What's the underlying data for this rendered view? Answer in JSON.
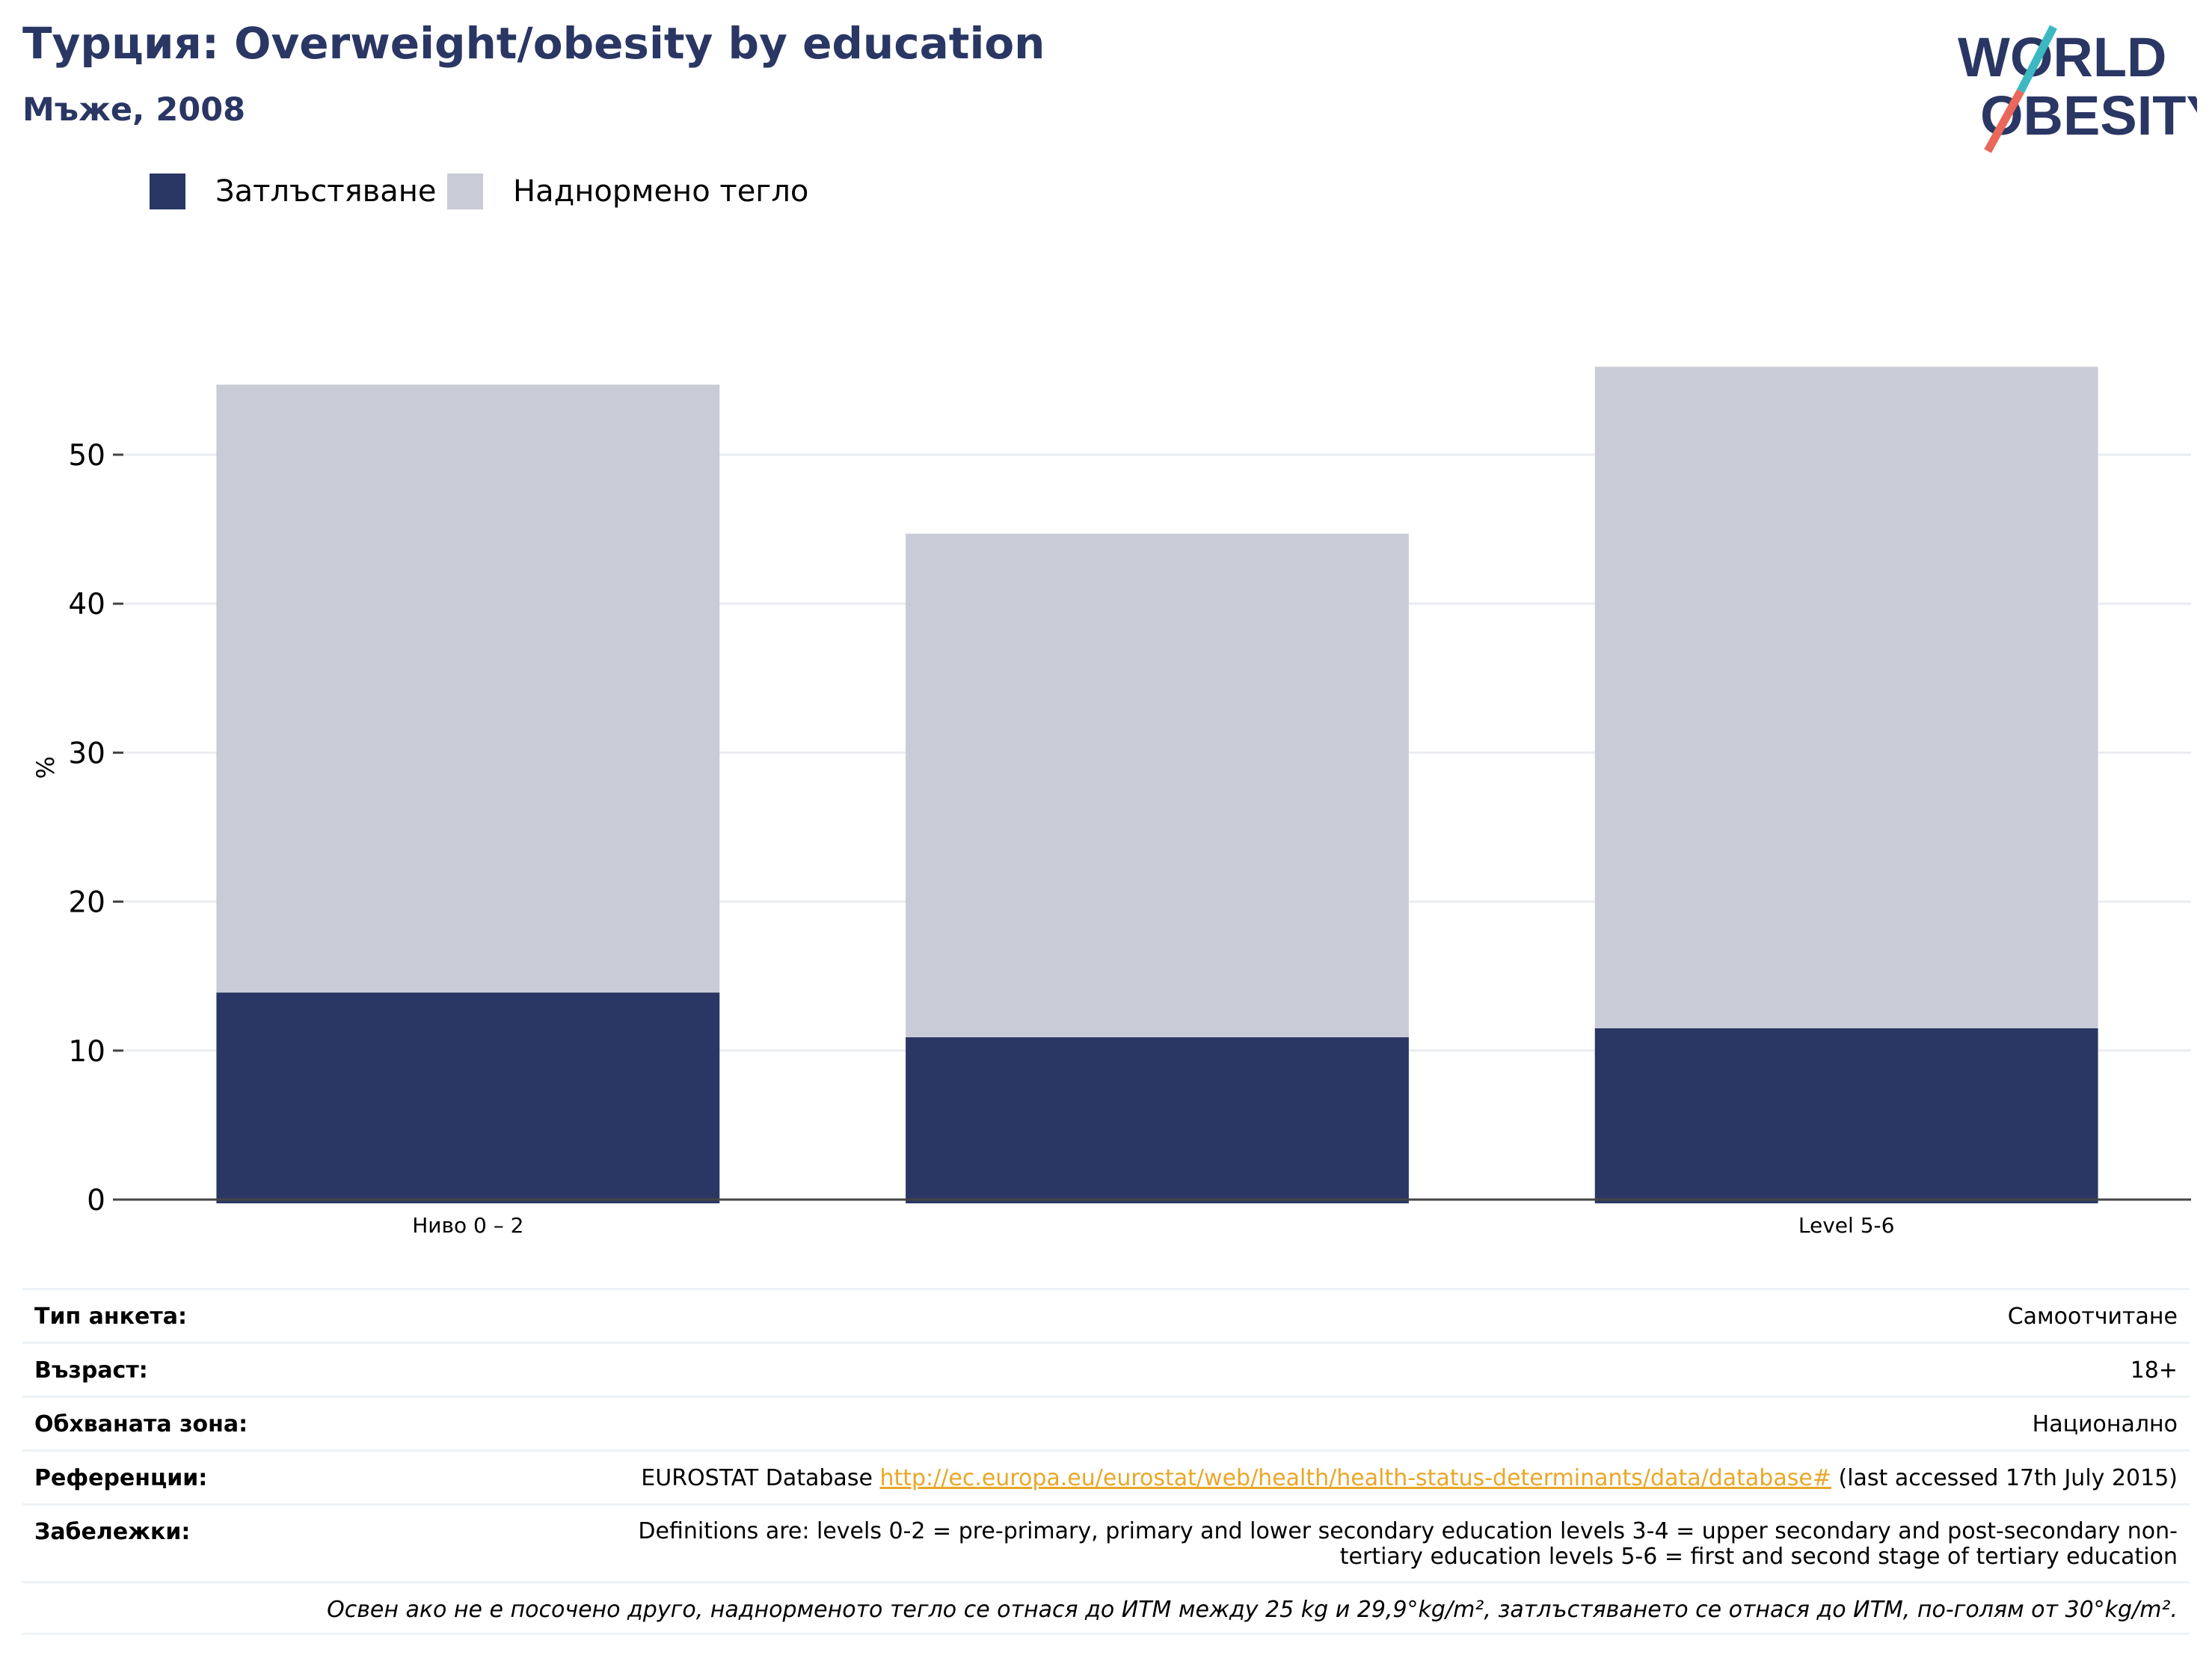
{
  "header": {
    "title": "Турция: Overweight/obesity by education",
    "subtitle": "Мъже, 2008"
  },
  "logo": {
    "line1": "WORLD",
    "line2": "OBESITY",
    "text_color": "#2a3764",
    "slash_top_color": "#3bb8c2",
    "slash_bottom_color": "#e9675b"
  },
  "chart_data": {
    "type": "bar",
    "stacked": true,
    "categories": [
      "Ниво 0 – 2",
      "",
      "Level 5-6"
    ],
    "series": [
      {
        "name": "Затлъстяване",
        "color": "#2a3764",
        "values": [
          13.9,
          10.9,
          11.5
        ]
      },
      {
        "name": "Наднормено тегло",
        "color": "#c9cbd7",
        "values": [
          40.8,
          33.8,
          44.4
        ]
      }
    ],
    "ylabel": "%",
    "xlabel": "",
    "ylim": [
      0,
      58
    ],
    "yticks": [
      0,
      10,
      20,
      30,
      40,
      50
    ],
    "grid": true,
    "legend": "top-left"
  },
  "info": {
    "rows": [
      {
        "label": "Тип анкета:",
        "value": "Самоотчитане"
      },
      {
        "label": "Възраст:",
        "value": "18+"
      },
      {
        "label": "Обхваната зона:",
        "value": "Национално"
      },
      {
        "label": "Референции:",
        "value_prefix": "EUROSTAT Database ",
        "link": "http://ec.europa.eu/eurostat/web/health/health-status-determinants/data/database#",
        "value_suffix": " (last accessed 17th July 2015)"
      },
      {
        "label": "Забележки:",
        "value_line1": "Definitions are: levels 0-2 = pre-primary, primary and lower secondary education levels 3-4 = upper secondary and post-secondary non-",
        "value_line2": "tertiary education levels 5-6 = first and second stage of tertiary education"
      }
    ],
    "note": "Освен ако не е посочено друго, наднорменото тегло се отнася до ИТМ между 25 kg и 29,9°kg/m², затлъстяването се отнася до ИТМ, по-голям от 30°kg/m²."
  }
}
